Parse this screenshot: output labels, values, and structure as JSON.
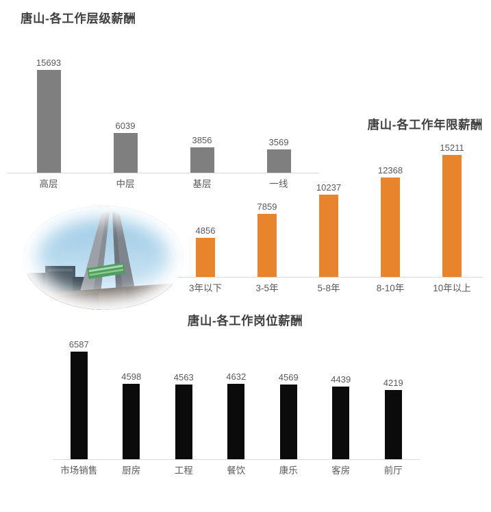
{
  "colors": {
    "title": "#3f3f3f",
    "value_label": "#595959",
    "category_label": "#595959",
    "axis_line": "#d9d9d9",
    "gray_bar": "#7f7f7f",
    "orange_bar": "#e8842b",
    "black_bar": "#0b0b0b"
  },
  "photo": {
    "name": "tangshan-monument-photo"
  },
  "chart_data": [
    {
      "id": "job-level",
      "type": "bar",
      "title": "唐山-各工作层级薪酬",
      "categories": [
        "高层",
        "中层",
        "基层",
        "一线"
      ],
      "values": [
        15693,
        6039,
        3856,
        3569
      ],
      "bar_color": "#7f7f7f",
      "ylim": [
        0,
        16500
      ],
      "xlabel": "",
      "ylabel": "",
      "grid": false,
      "legend": false,
      "value_labels_shown": true
    },
    {
      "id": "work-years",
      "type": "bar",
      "title": "唐山-各工作年限薪酬",
      "categories": [
        "3年以下",
        "3-5年",
        "5-8年",
        "8-10年",
        "10年以上"
      ],
      "values": [
        4856,
        7859,
        10237,
        12368,
        15211
      ],
      "bar_color": "#e8842b",
      "ylim": [
        0,
        16200
      ],
      "xlabel": "",
      "ylabel": "",
      "grid": false,
      "legend": false,
      "value_labels_shown": true
    },
    {
      "id": "job-position",
      "type": "bar",
      "title": "唐山-各工作岗位薪酬",
      "categories": [
        "市场销售",
        "厨房",
        "工程",
        "餐饮",
        "康乐",
        "客房",
        "前厅"
      ],
      "values": [
        6587,
        4598,
        4563,
        4632,
        4569,
        4439,
        4219
      ],
      "bar_color": "#0b0b0b",
      "ylim": [
        0,
        6800
      ],
      "xlabel": "",
      "ylabel": "",
      "grid": false,
      "legend": false,
      "value_labels_shown": true
    }
  ]
}
